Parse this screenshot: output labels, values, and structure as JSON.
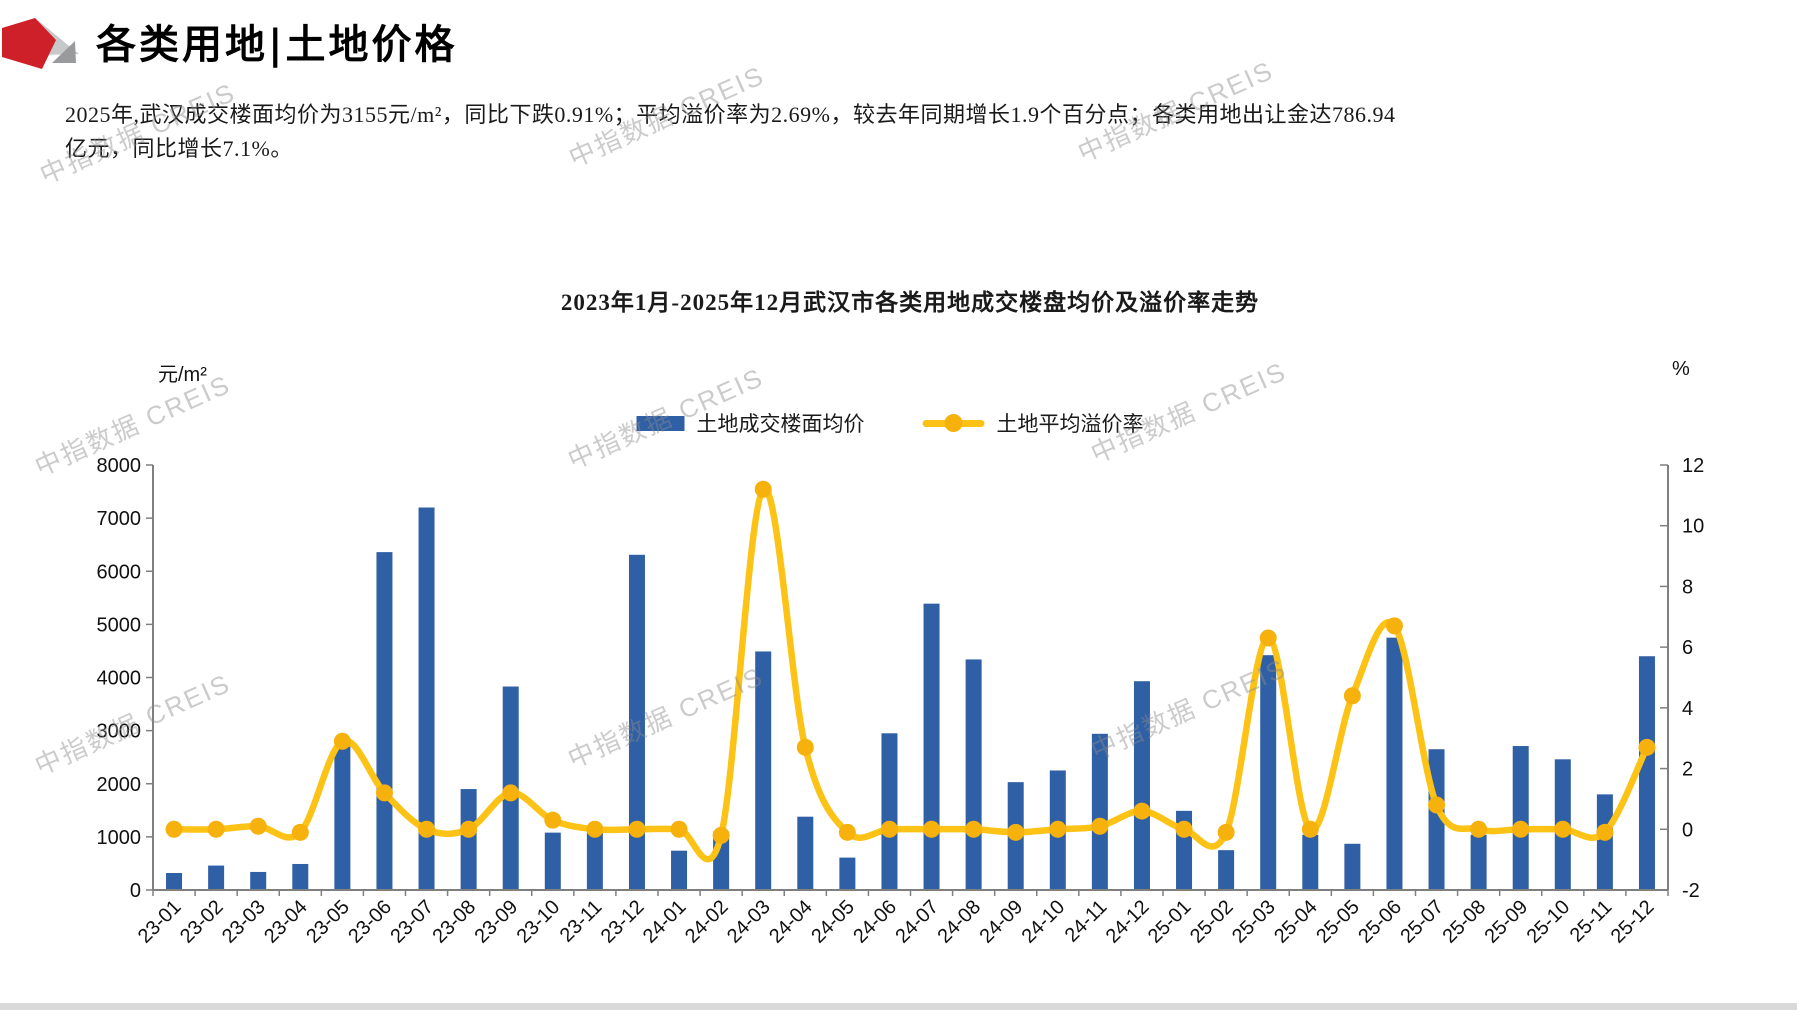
{
  "header": {
    "title": "各类用地|土地价格"
  },
  "summary": {
    "line1": "2025年,武汉成交楼面均价为3155元/m²，同比下跌0.91%；平均溢价率为2.69%，较去年同期增长1.9个百分点；各类用地出让金达786.94",
    "line2": "亿元，同比增长7.1%。"
  },
  "watermark": {
    "text": "中指数据 CREIS"
  },
  "colors": {
    "brand_red": "#CE2028",
    "logo_gray_light": "#C7C8CA",
    "logo_gray_dark": "#989A9C",
    "bar_blue": "#2F5FA5",
    "line_yellow": "#FCC216",
    "dot_yellow": "#F7B10C",
    "axis_gray": "#7f7f7f"
  },
  "chart_data": {
    "type": "bar",
    "title": "2023年1月-2025年12月武汉市各类用地成交楼盘均价及溢价率走势",
    "categories": [
      "23-01",
      "23-02",
      "23-03",
      "23-04",
      "23-05",
      "23-06",
      "23-07",
      "23-08",
      "23-09",
      "23-10",
      "23-11",
      "23-12",
      "24-01",
      "24-02",
      "24-03",
      "24-04",
      "24-05",
      "24-06",
      "24-07",
      "24-08",
      "24-09",
      "24-10",
      "24-11",
      "24-12",
      "25-01",
      "25-02",
      "25-03",
      "25-04",
      "25-05",
      "25-06",
      "25-07",
      "25-08",
      "25-09",
      "25-10",
      "25-11",
      "25-12"
    ],
    "series": [
      {
        "name": "土地成交楼面均价",
        "type": "bar",
        "axis": "left",
        "color": "#2F5FA5",
        "values": [
          320,
          460,
          340,
          490,
          2700,
          6360,
          7200,
          1900,
          3830,
          1080,
          1090,
          6310,
          740,
          1100,
          4490,
          1380,
          610,
          2950,
          5390,
          4340,
          2030,
          2250,
          2940,
          3930,
          1490,
          750,
          4420,
          1040,
          870,
          4750,
          2650,
          1040,
          2710,
          2460,
          1800,
          4400
        ]
      },
      {
        "name": "土地平均溢价率",
        "type": "line",
        "axis": "right",
        "color": "#FCC216",
        "values": [
          0,
          0,
          0.1,
          -0.1,
          2.9,
          1.2,
          0,
          0,
          1.2,
          0.3,
          0,
          0,
          0,
          -0.2,
          11.2,
          2.7,
          -0.1,
          0,
          0,
          0,
          -0.1,
          0,
          0.1,
          0.6,
          0,
          -0.1,
          6.3,
          0,
          4.4,
          6.7,
          0.8,
          0,
          0,
          0,
          -0.1,
          2.7
        ]
      }
    ],
    "left_axis": {
      "label": "元/m²",
      "min": 0,
      "max": 8000,
      "step": 1000
    },
    "right_axis": {
      "label": "%",
      "min": -2,
      "max": 12,
      "step": 2
    },
    "grid": false,
    "legend_position": "top-center"
  }
}
